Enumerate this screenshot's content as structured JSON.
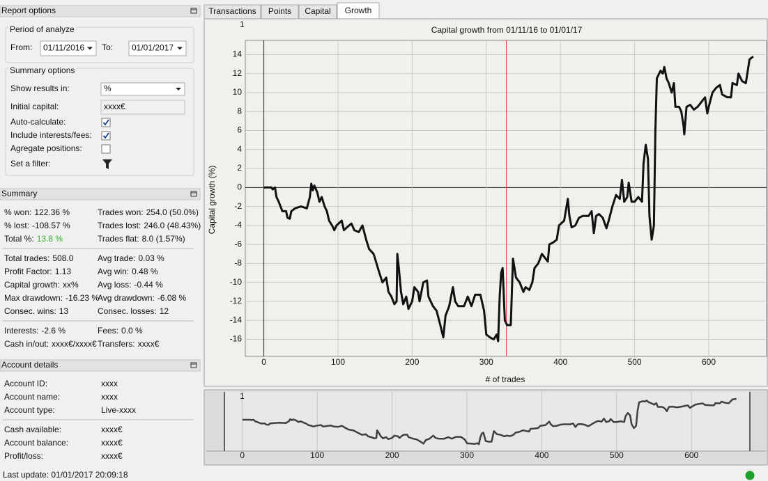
{
  "report_options": {
    "title": "Report options",
    "period": {
      "title": "Period of analyze",
      "from_label": "From:",
      "from_value": "01/11/2016",
      "to_label": "To:",
      "to_value": "01/01/2017"
    },
    "summary_options": {
      "title": "Summary options",
      "fields": [
        {
          "label": "Show results in:",
          "value": "%"
        },
        {
          "label": "Initial capital:",
          "value": "xxxx€"
        },
        {
          "label": "Auto-calculate:",
          "checked": true
        },
        {
          "label": "Include interests/fees:",
          "checked": true
        },
        {
          "label": "Agregate positions:",
          "checked": false
        },
        {
          "label": "Set a filter:"
        }
      ]
    }
  },
  "summary": {
    "title": "Summary",
    "groups": [
      [
        [
          {
            "label": "% won:",
            "value": "122.36 %"
          },
          {
            "label": "Trades won:",
            "value": "254.0 (50.0%)"
          }
        ],
        [
          {
            "label": "% lost:",
            "value": "-108.57 %"
          },
          {
            "label": "Trades lost:",
            "value": "246.0 (48.43%)"
          }
        ],
        [
          {
            "label": "Total %:",
            "value": "13.8 %",
            "color": "#2db52d"
          },
          {
            "label": "Trades flat:",
            "value": "8.0 (1.57%)"
          }
        ]
      ],
      [
        [
          {
            "label": "Total trades:",
            "value": "508.0"
          },
          {
            "label": "Avg trade:",
            "value": "0.03 %"
          }
        ],
        [
          {
            "label": "Profit Factor:",
            "value": "1.13"
          },
          {
            "label": "Avg win:",
            "value": "0.48 %"
          }
        ],
        [
          {
            "label": "Capital growth:",
            "value": "xx%"
          },
          {
            "label": "Avg loss:",
            "value": "-0.44 %"
          }
        ],
        [
          {
            "label": "Max drawdown:",
            "value": "-16.23 %"
          },
          {
            "label": "Avg drawdown:",
            "value": "-6.08 %"
          }
        ],
        [
          {
            "label": "Consec. wins:",
            "value": "13"
          },
          {
            "label": "Consec. losses:",
            "value": "12"
          }
        ]
      ],
      [
        [
          {
            "label": "Interests:",
            "value": "-2.6 %"
          },
          {
            "label": "Fees:",
            "value": "0.0 %"
          }
        ],
        [
          {
            "label": "Cash in/out:",
            "value": "xxxx€/xxxx€"
          },
          {
            "label": "Transfers:",
            "value": "xxxx€"
          }
        ]
      ]
    ]
  },
  "account_details": {
    "title": "Account details",
    "groups": [
      [
        {
          "label": "Account ID:",
          "value": "xxxx"
        },
        {
          "label": "Account name:",
          "value": "xxxx"
        },
        {
          "label": "Account type:",
          "value": "Live-xxxx"
        }
      ],
      [
        {
          "label": "Cash available:",
          "value": "xxxx€"
        },
        {
          "label": "Account balance:",
          "value": "xxxx€"
        },
        {
          "label": "Profit/loss:",
          "value": "xxxx€"
        }
      ]
    ]
  },
  "status": "Last update: 01/01/2017 20:09:18",
  "tabs": {
    "items": [
      "Transactions",
      "Points",
      "Capital",
      "Growth"
    ],
    "active": 3
  },
  "chart_data": [
    {
      "type": "line",
      "title": "Capital growth from 01/11/16 to 01/01/17",
      "corner_label": "1",
      "x_label": "# of trades",
      "y_label": "Capital growth (%)",
      "xlim": [
        -25,
        678
      ],
      "ylim": [
        -17.8,
        15.5
      ],
      "xticks": [
        0,
        100,
        200,
        300,
        400,
        500,
        600
      ],
      "yticks": [
        -16,
        -14,
        -12,
        -10,
        -8,
        -6,
        -4,
        -2,
        0,
        2,
        4,
        6,
        8,
        10,
        12,
        14
      ],
      "grid": true,
      "marker_x": 327,
      "marker_color": "#e04848",
      "series": [
        {
          "color": "#111111",
          "x": [
            0,
            5,
            10,
            12,
            15,
            17,
            20,
            25,
            30,
            32,
            35,
            37,
            42,
            50,
            58,
            62,
            64,
            66,
            68,
            72,
            75,
            78,
            82,
            85,
            88,
            92,
            95,
            98,
            105,
            108,
            112,
            118,
            122,
            128,
            133,
            138,
            142,
            148,
            150,
            155,
            160,
            165,
            168,
            172,
            176,
            179,
            180,
            182,
            185,
            188,
            192,
            195,
            200,
            203,
            208,
            210,
            215,
            220,
            222,
            228,
            233,
            238,
            242,
            245,
            250,
            255,
            258,
            262,
            270,
            275,
            280,
            285,
            292,
            297,
            300,
            305,
            310,
            314,
            316,
            318,
            320,
            322,
            325,
            328,
            333,
            336,
            340,
            345,
            350,
            353,
            358,
            362,
            365,
            370,
            375,
            383,
            385,
            390,
            395,
            398,
            405,
            410,
            412,
            415,
            420,
            425,
            430,
            438,
            442,
            445,
            448,
            452,
            457,
            462,
            465,
            470,
            475,
            480,
            483,
            486,
            490,
            492,
            496,
            500,
            505,
            510,
            512,
            515,
            518,
            520,
            523,
            526,
            528,
            530,
            535,
            538,
            540,
            543,
            546,
            550,
            553,
            555,
            560,
            563,
            566,
            567,
            570,
            575,
            580,
            585,
            590,
            595,
            598,
            600,
            605,
            610,
            615,
            618,
            625,
            630,
            632,
            638,
            640,
            645,
            650,
            653,
            655,
            660
          ],
          "values": [
            0,
            0,
            0,
            -0.2,
            0,
            -1,
            -1.5,
            -2.5,
            -2.5,
            -3.2,
            -3.3,
            -2.5,
            -2.2,
            -2,
            -2.2,
            -1,
            0.4,
            -0.3,
            0.2,
            -0.5,
            -1.5,
            -1,
            -2,
            -2.5,
            -3.5,
            -4,
            -4.5,
            -4,
            -3.5,
            -4.5,
            -4.2,
            -3.8,
            -4.5,
            -4.7,
            -4,
            -5.5,
            -6.5,
            -7,
            -7.5,
            -8.8,
            -10,
            -9.5,
            -11,
            -11.5,
            -12.3,
            -12,
            -7,
            -8.5,
            -11,
            -12.3,
            -11.5,
            -12.8,
            -12,
            -10.5,
            -11,
            -12,
            -10,
            -9.8,
            -11.5,
            -12.5,
            -13,
            -14.5,
            -15.8,
            -13.5,
            -12.5,
            -10.5,
            -12,
            -12.5,
            -12.5,
            -11.5,
            -12.5,
            -11.3,
            -11.3,
            -13,
            -15.5,
            -15.8,
            -16,
            -15.5,
            -16.2,
            -11.5,
            -9,
            -8.5,
            -14,
            -14.5,
            -14.5,
            -7.5,
            -9.5,
            -10,
            -11,
            -10.5,
            -10.8,
            -10,
            -8.5,
            -8,
            -7,
            -7.8,
            -6,
            -5.8,
            -5.5,
            -4,
            -3.5,
            -1.2,
            -3,
            -4.2,
            -4,
            -3.2,
            -3,
            -3,
            -2.5,
            -4.8,
            -3,
            -2.8,
            -3.2,
            -4.3,
            -3.5,
            -2,
            -0.8,
            -1.2,
            0.8,
            -1.5,
            -1,
            0.5,
            -1.5,
            -1.5,
            -1,
            -1.5,
            2.5,
            4.5,
            3,
            -3,
            -5.5,
            -4,
            6,
            11.5,
            12.3,
            12,
            12.7,
            11.5,
            11,
            10,
            11,
            8.5,
            8.5,
            8,
            6.5,
            5.6,
            8.5,
            8.7,
            8.2,
            8.5,
            9,
            9.5,
            7.8,
            8.5,
            10,
            10.5,
            10.8,
            9.8,
            9.5,
            9.5,
            11,
            10.8,
            12,
            11.2,
            11,
            12.5,
            13.5,
            13.8
          ]
        }
      ]
    },
    {
      "type": "line",
      "corner_label": "1",
      "xlim": [
        -24,
        678
      ],
      "ylim": [
        -20.7,
        18.4
      ],
      "xticks": [
        0,
        100,
        200,
        300,
        400,
        500,
        600
      ],
      "color": "#404040"
    }
  ]
}
